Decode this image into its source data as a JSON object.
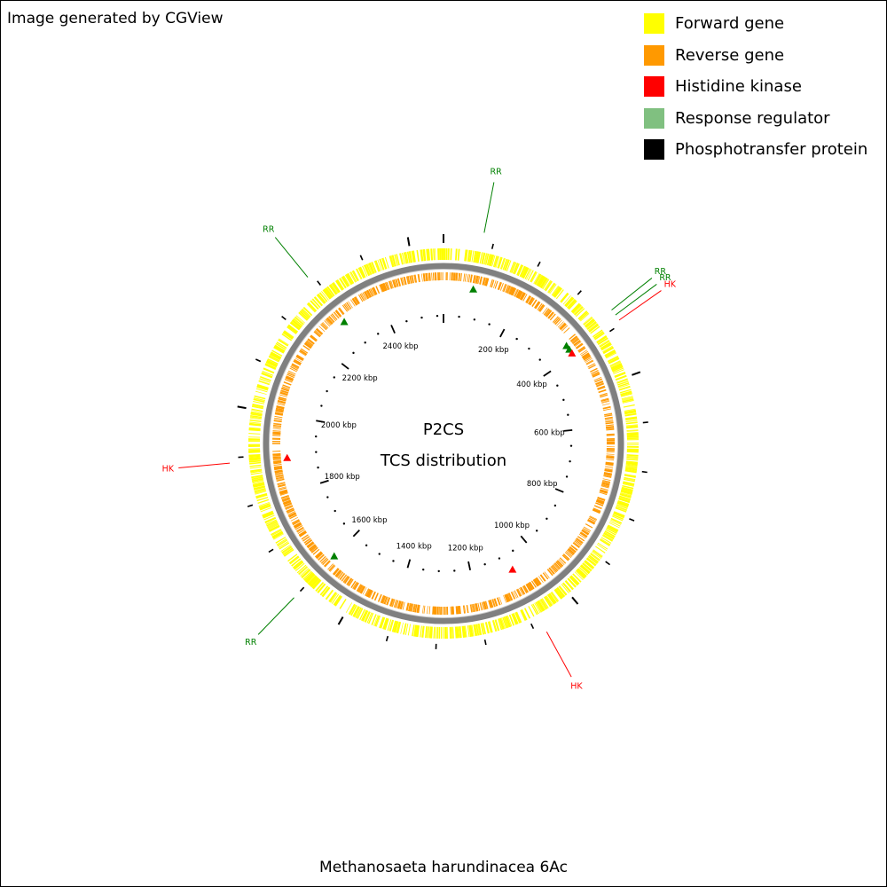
{
  "credit": "Image generated by CGView",
  "legend": [
    {
      "label": "Forward gene",
      "color": "#ffff00"
    },
    {
      "label": "Reverse gene",
      "color": "#ff9900"
    },
    {
      "label": "Histidine kinase",
      "color": "#ff0000"
    },
    {
      "label": "Response regulator",
      "color": "#80c080"
    },
    {
      "label": "Phosphotransfer protein",
      "color": "#000000"
    }
  ],
  "center": {
    "line1": "P2CS",
    "line2": "TCS distribution"
  },
  "organism": "Methanosaeta harundinacea 6Ac",
  "map": {
    "genome_length_kbp": 2570,
    "tick_labels": [
      "200 kbp",
      "400 kbp",
      "600 kbp",
      "800 kbp",
      "1000 kbp",
      "1200 kbp",
      "1400 kbp",
      "1600 kbp",
      "1800 kbp",
      "2000 kbp",
      "2200 kbp",
      "2400 kbp"
    ],
    "features": [
      {
        "type": "RR",
        "position_kbp": 78,
        "strand": "forward",
        "callout": "RR"
      },
      {
        "type": "RR",
        "position_kbp": 380,
        "strand": "forward",
        "callout": "RR"
      },
      {
        "type": "HK",
        "position_kbp": 392,
        "strand": "forward",
        "callout": "HK"
      },
      {
        "type": "RR",
        "position_kbp": 368,
        "strand": "forward",
        "callout": "RR"
      },
      {
        "type": "HK",
        "position_kbp": 1080,
        "strand": "reverse",
        "callout": "HK"
      },
      {
        "type": "RR",
        "position_kbp": 1600,
        "strand": "forward",
        "callout": "RR"
      },
      {
        "type": "HK",
        "position_kbp": 1890,
        "strand": "forward",
        "callout": "HK"
      },
      {
        "type": "RR",
        "position_kbp": 2290,
        "strand": "forward",
        "callout": "RR"
      }
    ],
    "colors": {
      "forward": "#ffff00",
      "reverse": "#ff9900",
      "backbone": "#808080",
      "hk": "#ff0000",
      "rr": "#008000",
      "tick": "#000000"
    }
  }
}
